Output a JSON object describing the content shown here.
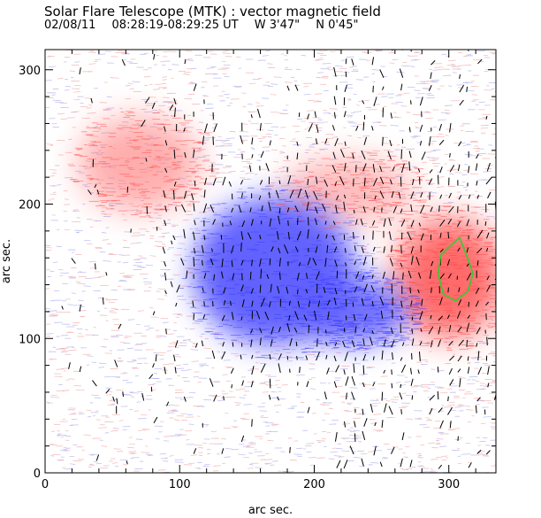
{
  "header": {
    "title": "Solar Flare Telescope (MTK) : vector magnetic field",
    "date": "02/08/11",
    "time_range": "08:28:19-08:29:25 UT",
    "longitude": "W 3'47\"",
    "latitude": "N 0'45\""
  },
  "colors": {
    "positive_polarity": "#ff6a6a",
    "negative_polarity": "#5a5aff",
    "background": "#ffffff",
    "vector_arrows": "#000000",
    "contour": "#33cc33"
  },
  "chart_data": {
    "type": "heatmap",
    "title": "Solar Flare Telescope (MTK) : vector magnetic field",
    "xlabel": "arc sec.",
    "ylabel": "arc sec.",
    "xlim": [
      0,
      335
    ],
    "ylim": [
      0,
      315
    ],
    "xticks": [
      0,
      100,
      200,
      300
    ],
    "yticks": [
      0,
      100,
      200,
      300
    ],
    "x_tick_labels": [
      "0",
      "100",
      "200",
      "300"
    ],
    "y_tick_labels": [
      "0",
      "100",
      "200",
      "300"
    ],
    "polarity_regions": [
      {
        "name": "positive-region-left",
        "polarity": "positive",
        "cx": 70,
        "cy": 230,
        "rx": 45,
        "ry": 35,
        "strength": 0.55
      },
      {
        "name": "positive-region-upper-mid",
        "polarity": "positive",
        "cx": 225,
        "cy": 210,
        "rx": 50,
        "ry": 25,
        "strength": 0.45
      },
      {
        "name": "positive-region-sunspot",
        "polarity": "positive",
        "cx": 300,
        "cy": 145,
        "rx": 40,
        "ry": 45,
        "strength": 1.0
      },
      {
        "name": "negative-region-main",
        "polarity": "negative",
        "cx": 170,
        "cy": 150,
        "rx": 60,
        "ry": 55,
        "strength": 0.95
      },
      {
        "name": "negative-region-tail",
        "polarity": "negative",
        "cx": 230,
        "cy": 120,
        "rx": 40,
        "ry": 25,
        "strength": 0.85
      }
    ],
    "contour": {
      "name": "umbra-contour",
      "points": [
        [
          300,
          168
        ],
        [
          308,
          175
        ],
        [
          314,
          160
        ],
        [
          318,
          148
        ],
        [
          314,
          135
        ],
        [
          305,
          128
        ],
        [
          296,
          133
        ],
        [
          292,
          148
        ],
        [
          294,
          162
        ],
        [
          300,
          168
        ]
      ]
    },
    "vector_field_region": {
      "x": [
        90,
        335
      ],
      "y": [
        0,
        315
      ]
    }
  }
}
